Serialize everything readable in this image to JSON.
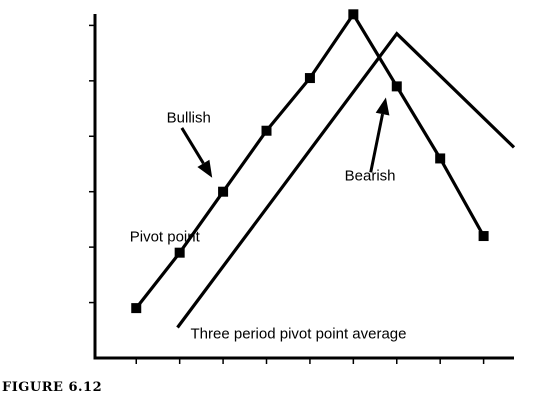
{
  "figure": {
    "caption": "FIGURE 6.12"
  },
  "chart_data": {
    "type": "line",
    "title": "",
    "xlabel": "",
    "ylabel": "",
    "x": [
      1,
      2,
      3,
      4,
      5,
      6,
      7,
      8,
      9
    ],
    "xlim": [
      0.05,
      9.7
    ],
    "ylim": [
      0,
      6.35
    ],
    "grid": false,
    "legend": "none",
    "series": [
      {
        "key": "pivot",
        "x": [
          1,
          2,
          3,
          4,
          5,
          6,
          7,
          8,
          9
        ],
        "values": [
          0.9,
          1.9,
          3.0,
          4.1,
          5.05,
          6.2,
          4.9,
          3.6,
          2.2
        ],
        "markers": true,
        "color": "#000000"
      },
      {
        "key": "average",
        "x": [
          1.95,
          7.0,
          9.7
        ],
        "values": [
          0.55,
          5.85,
          3.8
        ],
        "markers": false,
        "color": "#000000"
      }
    ],
    "annotations": [
      {
        "key": "bullish",
        "text": "Bullish",
        "at": [
          1.7,
          4.25
        ],
        "arrow": {
          "from": [
            2.05,
            4.15
          ],
          "to": [
            2.75,
            3.25
          ]
        }
      },
      {
        "key": "pivot_point",
        "text": "Pivot point",
        "at": [
          0.85,
          2.1
        ]
      },
      {
        "key": "bearish",
        "text": "Bearish",
        "at": [
          5.8,
          3.2
        ],
        "arrow": {
          "from": [
            6.4,
            3.35
          ],
          "to": [
            6.75,
            4.7
          ]
        }
      },
      {
        "key": "average_label",
        "text": "Three period pivot point average",
        "at": [
          2.25,
          0.35
        ]
      }
    ],
    "xticks": [
      1,
      2,
      3,
      4,
      5,
      6,
      7,
      8,
      9
    ],
    "yticks": [
      1,
      2,
      3,
      4,
      5,
      6
    ]
  }
}
